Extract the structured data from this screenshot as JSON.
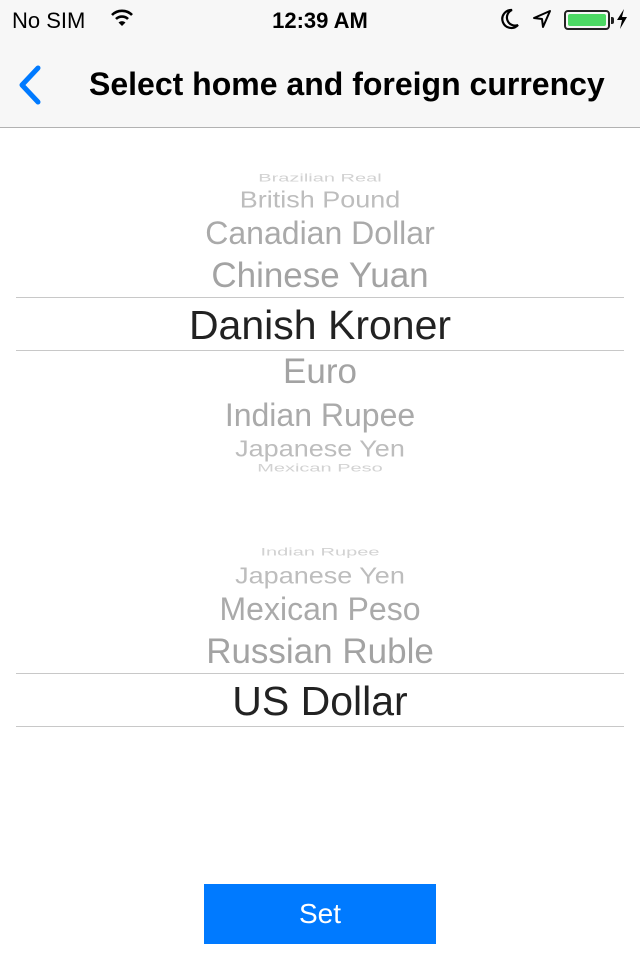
{
  "status_bar": {
    "carrier": "No SIM",
    "time": "12:39 AM",
    "battery_level": 1.0,
    "battery_color": "#4cd964"
  },
  "nav": {
    "title": "Select home and foreign currency",
    "back_icon": "chevron-left-icon",
    "accent": "#007aff"
  },
  "home_picker": {
    "options": [
      "Brazilian Real",
      "British Pound",
      "Canadian Dollar",
      "Chinese Yuan",
      "Danish Kroner",
      "Euro",
      "Indian Rupee",
      "Japanese Yen",
      "Mexican Peso"
    ],
    "selected": "Danish Kroner"
  },
  "foreign_picker": {
    "options": [
      "Indian Rupee",
      "Japanese Yen",
      "Mexican Peso",
      "Russian Ruble",
      "US Dollar"
    ],
    "selected": "US Dollar"
  },
  "set_button": {
    "label": "Set",
    "color": "#007aff"
  }
}
